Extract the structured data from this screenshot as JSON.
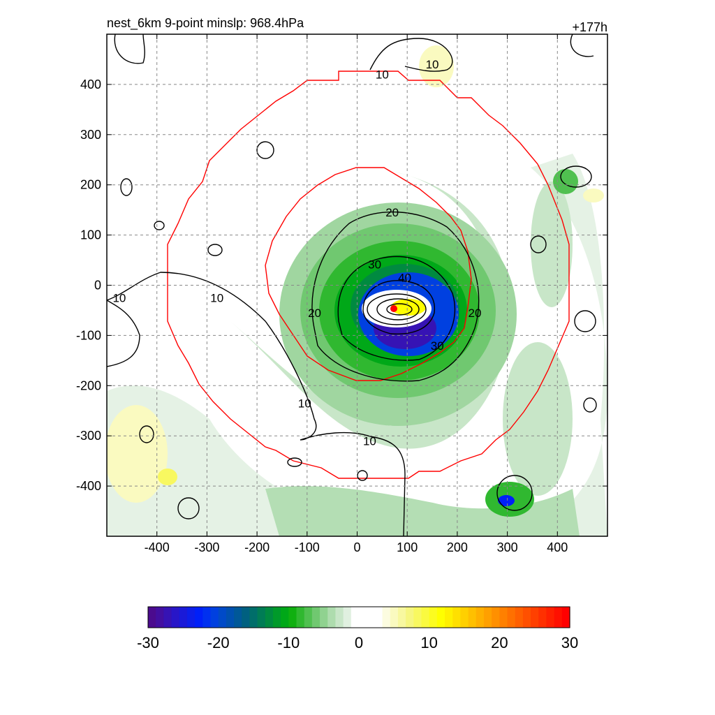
{
  "chart_data": {
    "type": "heatmap",
    "title": "nest_6km  9-point minslp: 968.4hPa",
    "forecast_hour": "+177h",
    "xlim": [
      -500,
      500
    ],
    "ylim": [
      -500,
      500
    ],
    "x_ticks": [
      -400,
      -300,
      -200,
      -100,
      0,
      100,
      200,
      300,
      400
    ],
    "y_ticks": [
      400,
      300,
      200,
      100,
      0,
      -100,
      -200,
      -300,
      -400
    ],
    "grid": "on (dashed)",
    "storm_center": [
      75,
      -45
    ],
    "contour_levels": [
      10,
      20,
      30,
      40
    ],
    "contour_labels": [
      {
        "text": "10",
        "x": 150,
        "y": 440
      },
      {
        "text": "10",
        "x": 50,
        "y": 420
      },
      {
        "text": "10",
        "x": -280,
        "y": -25
      },
      {
        "text": "10",
        "x": -475,
        "y": -25
      },
      {
        "text": "10",
        "x": -105,
        "y": -235
      },
      {
        "text": "10",
        "x": 25,
        "y": -310
      },
      {
        "text": "20",
        "x": 70,
        "y": 145
      },
      {
        "text": "20",
        "x": -85,
        "y": -55
      },
      {
        "text": "20",
        "x": 235,
        "y": -55
      },
      {
        "text": "30",
        "x": 35,
        "y": 42
      },
      {
        "text": "30",
        "x": 160,
        "y": -120
      },
      {
        "text": "40",
        "x": 95,
        "y": 15
      }
    ],
    "colorbar": {
      "min": -30,
      "max": 30,
      "tick_labels": [
        "-30",
        "-20",
        "-10",
        "0",
        "10",
        "20",
        "30"
      ],
      "colors": [
        "#4b0b8e",
        "#430fa0",
        "#3613b4",
        "#2816c8",
        "#1a1ad8",
        "#0d1ee8",
        "#0020f8",
        "#0030f0",
        "#0040e0",
        "#004ac8",
        "#0050b0",
        "#005898",
        "#006080",
        "#006e6a",
        "#007c55",
        "#008a40",
        "#009a2a",
        "#00a818",
        "#10b010",
        "#30b830",
        "#50c050",
        "#70c870",
        "#90d290",
        "#aedcae",
        "#c8e6c8",
        "#e0f0e0",
        "#ffffff",
        "#ffffff",
        "#ffffff",
        "#ffffff",
        "#fcfce0",
        "#fafac0",
        "#f8f8a0",
        "#f6f680",
        "#f8f860",
        "#fafa40",
        "#fcfc20",
        "#ffff00",
        "#fff000",
        "#ffe000",
        "#ffd000",
        "#ffc000",
        "#ffb000",
        "#ffa000",
        "#ff9000",
        "#ff8000",
        "#ff7000",
        "#ff6000",
        "#ff5000",
        "#ff4000",
        "#ff3000",
        "#ff2000",
        "#ff1000",
        "#ff0000"
      ]
    }
  }
}
